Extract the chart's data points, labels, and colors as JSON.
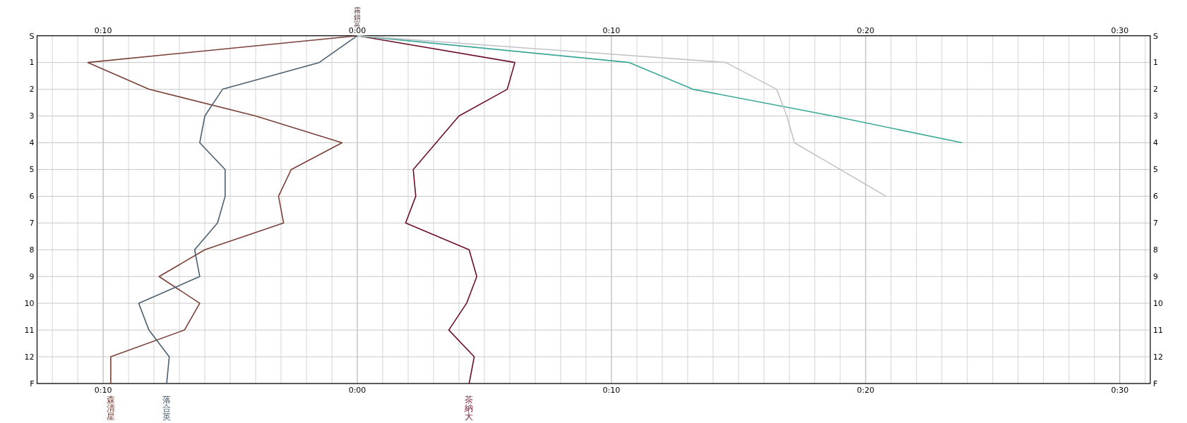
{
  "chart_data": {
    "type": "line",
    "orientation": "horizontal",
    "annotations": [
      "霧錯富"
    ],
    "categories": [
      "S",
      "1",
      "2",
      "3",
      "4",
      "5",
      "6",
      "7",
      "8",
      "9",
      "10",
      "11",
      "12",
      "F"
    ],
    "xlim": [
      -12.6,
      31.2
    ],
    "xticks": [
      {
        "value": -10,
        "label": "0:10"
      },
      {
        "value": 0,
        "label": "0:00"
      },
      {
        "value": 10,
        "label": "0:10"
      },
      {
        "value": 20,
        "label": "0:20"
      },
      {
        "value": 30,
        "label": "0:30"
      }
    ],
    "x2lim": [
      -12.6,
      31.2
    ],
    "x2ticks": [
      {
        "value": -10,
        "label": "0:10"
      },
      {
        "value": 0,
        "label": "0:00"
      },
      {
        "value": 10,
        "label": "0:10"
      },
      {
        "value": 20,
        "label": "0:20"
      },
      {
        "value": 30,
        "label": "0:30"
      }
    ],
    "grid": true,
    "series": [
      {
        "name": "森清星",
        "color": "#7a4038",
        "values": [
          0,
          -10.6,
          -8.2,
          -4.0,
          -0.6,
          -2.6,
          -3.1,
          -2.9,
          -6.0,
          -7.8,
          -6.2,
          -6.8,
          -9.7,
          -9.7
        ]
      },
      {
        "name": "落合英",
        "color": "#4a6070",
        "values": [
          0,
          -1.5,
          -5.3,
          -6.0,
          -6.2,
          -5.2,
          -5.2,
          -5.5,
          -6.4,
          -6.2,
          -8.6,
          -8.2,
          -7.4,
          -7.5
        ]
      },
      {
        "name": "茶納大",
        "color": "#6b1028",
        "values": [
          0,
          6.2,
          5.9,
          4.0,
          3.1,
          2.2,
          2.3,
          1.9,
          4.4,
          4.7,
          4.3,
          3.6,
          4.6,
          4.4
        ]
      },
      {
        "color": "#3aa898",
        "values": [
          0,
          10.7,
          13.2,
          18.7,
          23.8,
          null,
          null,
          null,
          null,
          null,
          null,
          null,
          null,
          null
        ]
      },
      {
        "color": "#c0c4c8",
        "values": [
          0,
          14.5,
          16.5,
          16.9,
          17.2,
          19.0,
          20.8,
          null,
          null,
          null,
          null,
          null,
          null,
          null
        ]
      }
    ]
  }
}
